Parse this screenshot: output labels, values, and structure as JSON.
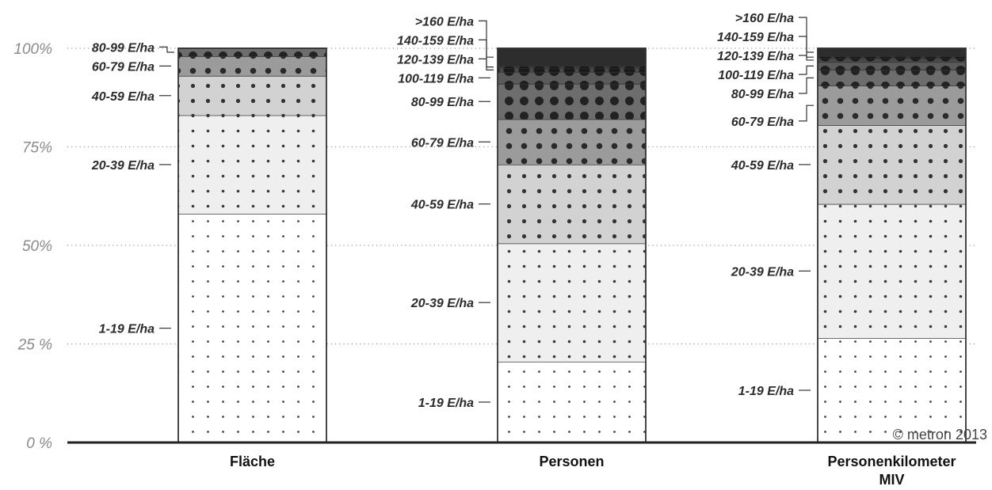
{
  "chart_data": {
    "type": "bar",
    "stacked": true,
    "ylim": [
      0,
      100
    ],
    "y_ticks": [
      {
        "value": 0,
        "label": "0 %"
      },
      {
        "value": 25,
        "label": "25 %"
      },
      {
        "value": 50,
        "label": "50%"
      },
      {
        "value": 75,
        "label": "75%"
      },
      {
        "value": 100,
        "label": "100%"
      }
    ],
    "grid": "dotted horizontal",
    "categories": [
      "Fläche",
      "Personen",
      "Personenkilometer MIV"
    ],
    "category_lines": [
      [
        "Fläche"
      ],
      [
        "Personen"
      ],
      [
        "Personenkilometer",
        "MIV"
      ]
    ],
    "segments": [
      "1-19 E/ha",
      "20-39 E/ha",
      "40-59 E/ha",
      "60-79 E/ha",
      "80-99 E/ha",
      "100-119 E/ha",
      "120-139 E/ha",
      "140-159 E/ha",
      ">160 E/ha"
    ],
    "series": [
      {
        "name": "1-19 E/ha",
        "values": [
          58,
          20.5,
          26.5
        ]
      },
      {
        "name": "20-39 E/ha",
        "values": [
          25,
          30,
          34
        ]
      },
      {
        "name": "40-59 E/ha",
        "values": [
          10,
          20,
          20
        ]
      },
      {
        "name": "60-79 E/ha",
        "values": [
          5,
          11.5,
          10
        ]
      },
      {
        "name": "80-99 E/ha",
        "values": [
          2,
          9,
          4
        ]
      },
      {
        "name": "100-119 E/ha",
        "values": [
          0,
          3,
          2
        ]
      },
      {
        "name": "120-139 E/ha",
        "values": [
          0,
          1,
          1
        ]
      },
      {
        "name": "140-159 E/ha",
        "values": [
          0,
          0.5,
          0.5
        ]
      },
      {
        "name": ">160 E/ha",
        "values": [
          0,
          4.5,
          2
        ]
      }
    ],
    "bar_labels": [
      [
        "1-19 E/ha",
        "20-39 E/ha",
        "40-59 E/ha",
        "60-79 E/ha",
        "80-99 E/ha"
      ],
      [
        "1-19 E/ha",
        "20-39 E/ha",
        "40-59 E/ha",
        "60-79 E/ha",
        "80-99 E/ha",
        "100-119 E/ha",
        "120-139 E/ha",
        "140-159 E/ha",
        ">160 E/ha"
      ],
      [
        "1-19 E/ha",
        "20-39 E/ha",
        "40-59 E/ha",
        "60-79 E/ha",
        "80-99 E/ha",
        "100-119 E/ha",
        "120-139 E/ha",
        "140-159 E/ha",
        ">160 E/ha"
      ]
    ],
    "colors": {
      "fills": [
        "#ffffff",
        "#efefef",
        "#d2d2d2",
        "#9b9b9b",
        "#6d6d6d",
        "#5a5a5a",
        "#494949",
        "#3a3a3a",
        "#2d2d2d"
      ],
      "dots": [
        "#444444",
        "#3a3a3a",
        "#333333",
        "#2a2a2a",
        "#222222",
        "#1e1e1e",
        "#1a1a1a",
        "#161616",
        "#111111"
      ],
      "outline": "#333333",
      "axis": "#222222",
      "grid": "#999999"
    }
  },
  "copyright": "© metron 2013"
}
